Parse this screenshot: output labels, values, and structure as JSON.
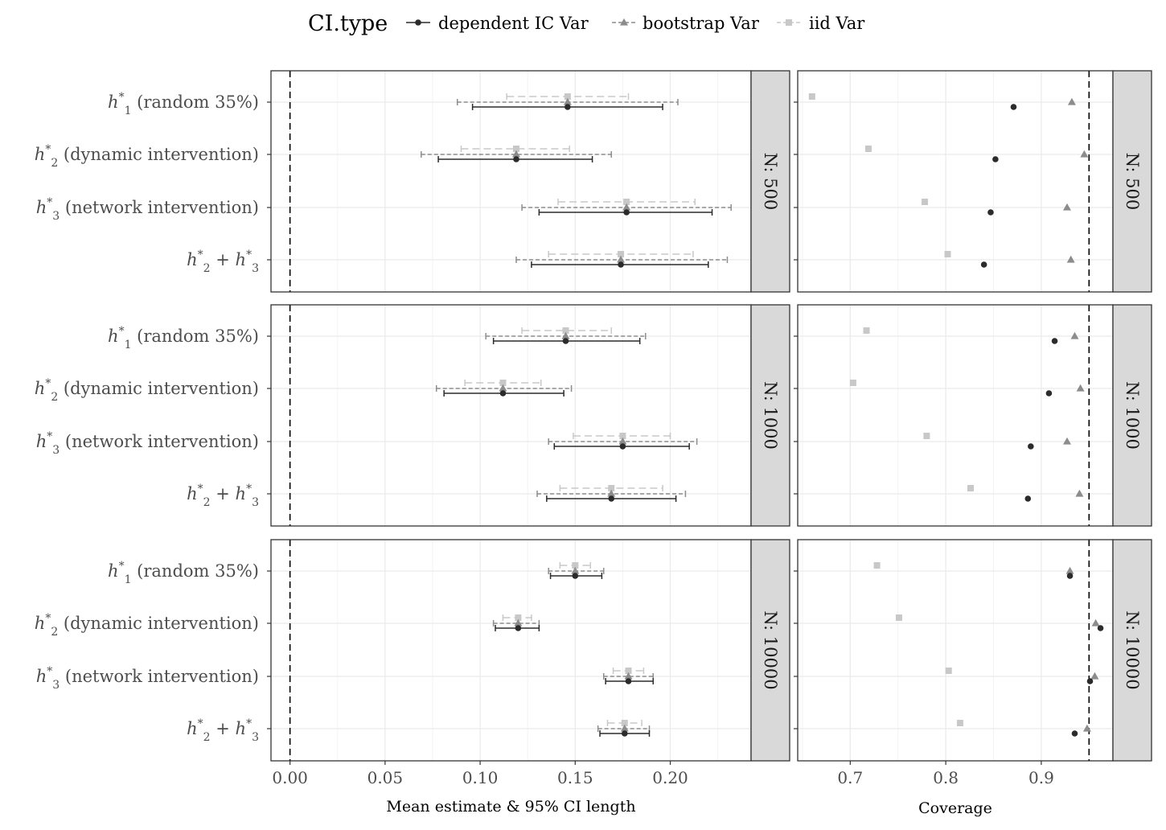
{
  "chart_data": {
    "type": "scatter",
    "layout": "faceted grid: rows by sample size N, left column = mean estimate with 95% CI, right column = coverage",
    "legend": {
      "title": "CI.type",
      "placement": "top",
      "entries": [
        {
          "key": "dependent",
          "label": "dependent IC Var",
          "color": "#2b2b2b",
          "marker": "circle",
          "line": "solid"
        },
        {
          "key": "bootstrap",
          "label": "bootstrap Var",
          "color": "#8c8c8c",
          "marker": "triangle",
          "line": "dashed"
        },
        {
          "key": "iid",
          "label": "iid Var",
          "color": "#c8c8c8",
          "marker": "square",
          "line": "dashed"
        }
      ]
    },
    "rows": [
      {
        "labels": [
          {
            "main": "h",
            "sub": "1",
            "rest": " (random 35%)"
          },
          {
            "main": "h",
            "sub": "2",
            "rest": " (dynamic intervention)"
          },
          {
            "main": "h",
            "sub": "3",
            "rest": " (network intervention)"
          },
          {
            "main": "h",
            "sub": "2",
            "rest": " + ",
            "main2": "h",
            "sub2": "3"
          }
        ]
      }
    ],
    "left_panel": {
      "xlabel": "Mean estimate & 95% CI length",
      "xlim": [
        -0.01,
        0.2425
      ],
      "xticks": [
        0.0,
        0.05,
        0.1,
        0.15,
        0.2
      ],
      "xtick_labels": [
        "0.00",
        "0.05",
        "0.10",
        "0.15",
        "0.20"
      ],
      "reference_line": 0.0
    },
    "right_panel": {
      "xlabel": "Coverage",
      "xlim": [
        0.645,
        0.975
      ],
      "xticks": [
        0.7,
        0.8,
        0.9
      ],
      "xtick_labels": [
        "0.7",
        "0.8",
        "0.9"
      ],
      "reference_line": 0.95
    },
    "facets": [
      {
        "strip": "N: 500",
        "estimates": [
          {
            "dependent": [
              0.146,
              0.096,
              0.196
            ],
            "bootstrap": [
              0.146,
              0.088,
              0.204
            ],
            "iid": [
              0.146,
              0.114,
              0.178
            ]
          },
          {
            "dependent": [
              0.119,
              0.078,
              0.159
            ],
            "bootstrap": [
              0.119,
              0.069,
              0.169
            ],
            "iid": [
              0.119,
              0.09,
              0.147
            ]
          },
          {
            "dependent": [
              0.177,
              0.131,
              0.222
            ],
            "bootstrap": [
              0.177,
              0.122,
              0.232
            ],
            "iid": [
              0.177,
              0.141,
              0.213
            ]
          },
          {
            "dependent": [
              0.174,
              0.127,
              0.22
            ],
            "bootstrap": [
              0.174,
              0.119,
              0.23
            ],
            "iid": [
              0.174,
              0.136,
              0.212
            ]
          }
        ],
        "coverage": [
          {
            "dependent": 0.871,
            "bootstrap": 0.932,
            "iid": 0.66
          },
          {
            "dependent": 0.852,
            "bootstrap": 0.945,
            "iid": 0.719
          },
          {
            "dependent": 0.847,
            "bootstrap": 0.927,
            "iid": 0.778
          },
          {
            "dependent": 0.84,
            "bootstrap": 0.931,
            "iid": 0.802
          }
        ]
      },
      {
        "strip": "N: 1000",
        "estimates": [
          {
            "dependent": [
              0.145,
              0.107,
              0.184
            ],
            "bootstrap": [
              0.145,
              0.103,
              0.187
            ],
            "iid": [
              0.145,
              0.122,
              0.169
            ]
          },
          {
            "dependent": [
              0.112,
              0.081,
              0.144
            ],
            "bootstrap": [
              0.112,
              0.077,
              0.148
            ],
            "iid": [
              0.112,
              0.092,
              0.132
            ]
          },
          {
            "dependent": [
              0.175,
              0.139,
              0.21
            ],
            "bootstrap": [
              0.175,
              0.136,
              0.214
            ],
            "iid": [
              0.175,
              0.149,
              0.2
            ]
          },
          {
            "dependent": [
              0.169,
              0.135,
              0.203
            ],
            "bootstrap": [
              0.169,
              0.13,
              0.208
            ],
            "iid": [
              0.169,
              0.142,
              0.196
            ]
          }
        ],
        "coverage": [
          {
            "dependent": 0.914,
            "bootstrap": 0.935,
            "iid": 0.717
          },
          {
            "dependent": 0.908,
            "bootstrap": 0.941,
            "iid": 0.703
          },
          {
            "dependent": 0.889,
            "bootstrap": 0.927,
            "iid": 0.78
          },
          {
            "dependent": 0.886,
            "bootstrap": 0.94,
            "iid": 0.826
          }
        ]
      },
      {
        "strip": "N: 10000",
        "estimates": [
          {
            "dependent": [
              0.15,
              0.137,
              0.164
            ],
            "bootstrap": [
              0.15,
              0.136,
              0.165
            ],
            "iid": [
              0.15,
              0.142,
              0.158
            ]
          },
          {
            "dependent": [
              0.12,
              0.108,
              0.131
            ],
            "bootstrap": [
              0.12,
              0.107,
              0.131
            ],
            "iid": [
              0.12,
              0.112,
              0.127
            ]
          },
          {
            "dependent": [
              0.178,
              0.166,
              0.191
            ],
            "bootstrap": [
              0.178,
              0.165,
              0.191
            ],
            "iid": [
              0.178,
              0.17,
              0.186
            ]
          },
          {
            "dependent": [
              0.176,
              0.163,
              0.189
            ],
            "bootstrap": [
              0.176,
              0.162,
              0.189
            ],
            "iid": [
              0.176,
              0.167,
              0.185
            ]
          }
        ],
        "coverage": [
          {
            "dependent": 0.93,
            "bootstrap": 0.93,
            "iid": 0.728
          },
          {
            "dependent": 0.962,
            "bootstrap": 0.957,
            "iid": 0.751
          },
          {
            "dependent": 0.951,
            "bootstrap": 0.956,
            "iid": 0.803
          },
          {
            "dependent": 0.935,
            "bootstrap": 0.948,
            "iid": 0.815
          }
        ]
      }
    ]
  }
}
